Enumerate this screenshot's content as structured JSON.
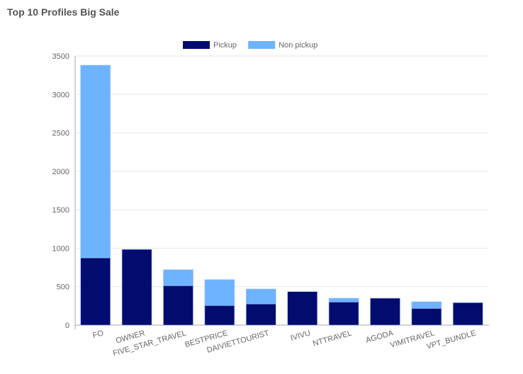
{
  "chart_data": {
    "type": "bar",
    "stacked": true,
    "title": "Top 10 Profiles Big Sale",
    "categories": [
      "FO",
      "OWNER",
      "FIVE_STAR_TRAVEL",
      "BESTPRICE",
      "DAIVIETTOURIST",
      "IVIVU",
      "NTTRAVEL",
      "AGODA",
      "VIMITRAVEL",
      "VPT_BUNDLE"
    ],
    "series": [
      {
        "name": "Pickup",
        "color": "#020b6e",
        "values": [
          875,
          985,
          513,
          255,
          276,
          436,
          301,
          350,
          218,
          292
        ]
      },
      {
        "name": "Non pickup",
        "color": "#6eb3ff",
        "values": [
          2505,
          0,
          208,
          337,
          194,
          0,
          49,
          0,
          86,
          0
        ]
      }
    ],
    "ylim": [
      0,
      3500
    ],
    "yticks": [
      0,
      500,
      1000,
      1500,
      2000,
      2500,
      3000,
      3500
    ],
    "grid": true,
    "legend": "top"
  }
}
